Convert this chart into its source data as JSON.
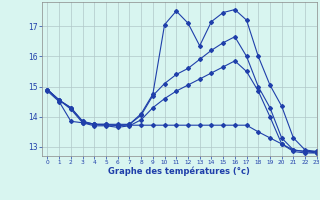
{
  "xlabel": "Graphe des températures (°c)",
  "bg_color": "#d8f5f0",
  "line_color": "#1f3faa",
  "grid_color": "#b0c8c8",
  "xlim": [
    -0.5,
    23
  ],
  "ylim": [
    12.7,
    17.8
  ],
  "xticks": [
    0,
    1,
    2,
    3,
    4,
    5,
    6,
    7,
    8,
    9,
    10,
    11,
    12,
    13,
    14,
    15,
    16,
    17,
    18,
    19,
    20,
    21,
    22,
    23
  ],
  "yticks": [
    13,
    14,
    15,
    16,
    17
  ],
  "curve1_x": [
    0,
    1,
    2,
    3,
    4,
    5,
    6,
    7,
    8,
    9,
    10,
    11,
    12,
    13,
    14,
    15,
    16,
    17,
    18,
    19,
    20,
    21,
    22,
    23
  ],
  "curve1_y": [
    14.9,
    14.55,
    14.3,
    13.85,
    13.75,
    13.75,
    13.75,
    13.75,
    14.1,
    14.75,
    17.05,
    17.5,
    17.1,
    16.35,
    17.15,
    17.45,
    17.55,
    17.2,
    16.0,
    15.05,
    14.35,
    13.3,
    12.9,
    12.85
  ],
  "curve2_x": [
    0,
    1,
    2,
    3,
    4,
    5,
    6,
    7,
    8,
    9,
    10,
    11,
    12,
    13,
    14,
    15,
    16,
    17,
    18,
    19,
    20,
    21,
    22,
    23
  ],
  "curve2_y": [
    14.9,
    14.55,
    14.3,
    13.85,
    13.75,
    13.75,
    13.7,
    13.75,
    14.05,
    14.7,
    15.1,
    15.4,
    15.6,
    15.9,
    16.2,
    16.45,
    16.65,
    16.0,
    15.0,
    14.3,
    13.3,
    12.9,
    12.85,
    12.85
  ],
  "curve3_x": [
    0,
    1,
    2,
    3,
    4,
    5,
    6,
    7,
    8,
    9,
    10,
    11,
    12,
    13,
    14,
    15,
    16,
    17,
    18,
    19,
    20,
    21,
    22,
    23
  ],
  "curve3_y": [
    14.9,
    14.55,
    14.25,
    13.8,
    13.7,
    13.7,
    13.65,
    13.7,
    13.9,
    14.3,
    14.6,
    14.85,
    15.05,
    15.25,
    15.45,
    15.65,
    15.85,
    15.5,
    14.85,
    14.0,
    13.1,
    12.85,
    12.8,
    12.8
  ],
  "curve4_x": [
    0,
    1,
    2,
    3,
    4,
    5,
    6,
    7,
    8,
    9,
    10,
    11,
    12,
    13,
    14,
    15,
    16,
    17,
    18,
    19,
    20,
    21,
    22,
    23
  ],
  "curve4_y": [
    14.85,
    14.5,
    13.85,
    13.8,
    13.75,
    13.72,
    13.72,
    13.72,
    13.72,
    13.72,
    13.72,
    13.72,
    13.72,
    13.72,
    13.72,
    13.72,
    13.72,
    13.72,
    13.5,
    13.3,
    13.1,
    12.9,
    12.85,
    12.8
  ]
}
